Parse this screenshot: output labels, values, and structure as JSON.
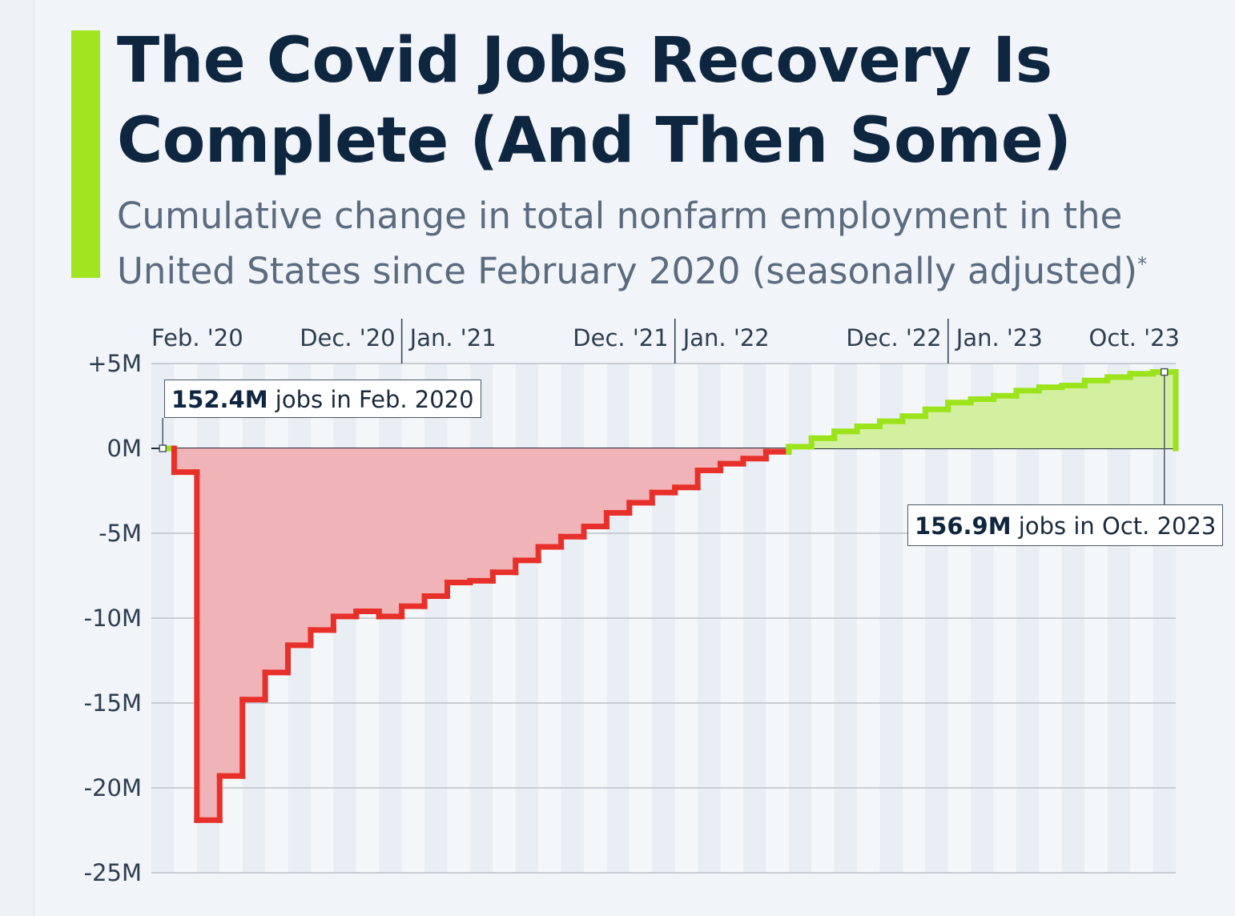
{
  "title": "The Covid Jobs Recovery Is Complete (And Then Some)",
  "subtitle": "Cumulative change in total nonfarm employment in the United States since February 2020 (seasonally adjusted)",
  "subtitle_footnote_mark": "*",
  "colors": {
    "accent": "#a0e520",
    "negative_line": "#e8302a",
    "negative_fill": "#f0b4b8",
    "positive_line": "#9be31a",
    "positive_fill": "#d3efa0",
    "title": "#0f2640"
  },
  "annotations": {
    "start": {
      "bold": "152.4M",
      "text": " jobs in Feb. 2020"
    },
    "end": {
      "bold": "156.9M",
      "text": " jobs in Oct. 2023"
    }
  },
  "chart_data": {
    "type": "area",
    "step": true,
    "ylabel": "",
    "xlabel": "",
    "ylim": [
      -25,
      5
    ],
    "unit": "M",
    "grid": true,
    "y_ticks": [
      "+5M",
      "0M",
      "-5M",
      "-10M",
      "-15M",
      "-20M",
      "-25M"
    ],
    "y_tick_values": [
      5,
      0,
      -5,
      -10,
      -15,
      -20,
      -25
    ],
    "x_tick_labels": [
      {
        "label": "Feb. '20",
        "month": "2020-02",
        "align": "start"
      },
      {
        "label": "Dec. '20",
        "month": "2020-12",
        "align": "end"
      },
      {
        "label": "Jan. '21",
        "month": "2021-01",
        "align": "start"
      },
      {
        "label": "Dec. '21",
        "month": "2021-12",
        "align": "end"
      },
      {
        "label": "Jan. '22",
        "month": "2022-01",
        "align": "start"
      },
      {
        "label": "Dec. '22",
        "month": "2022-12",
        "align": "end"
      },
      {
        "label": "Jan. '23",
        "month": "2023-01",
        "align": "start"
      },
      {
        "label": "Oct. '23",
        "month": "2023-10",
        "align": "end"
      }
    ],
    "x": [
      "2020-02",
      "2020-03",
      "2020-04",
      "2020-05",
      "2020-06",
      "2020-07",
      "2020-08",
      "2020-09",
      "2020-10",
      "2020-11",
      "2020-12",
      "2021-01",
      "2021-02",
      "2021-03",
      "2021-04",
      "2021-05",
      "2021-06",
      "2021-07",
      "2021-08",
      "2021-09",
      "2021-10",
      "2021-11",
      "2021-12",
      "2022-01",
      "2022-02",
      "2022-03",
      "2022-04",
      "2022-05",
      "2022-06",
      "2022-07",
      "2022-08",
      "2022-09",
      "2022-10",
      "2022-11",
      "2022-12",
      "2023-01",
      "2023-02",
      "2023-03",
      "2023-04",
      "2023-05",
      "2023-06",
      "2023-07",
      "2023-08",
      "2023-09",
      "2023-10"
    ],
    "values": [
      0,
      -1.4,
      -21.9,
      -19.3,
      -14.8,
      -13.2,
      -11.6,
      -10.7,
      -9.9,
      -9.6,
      -9.9,
      -9.3,
      -8.7,
      -7.9,
      -7.8,
      -7.3,
      -6.6,
      -5.8,
      -5.2,
      -4.6,
      -3.8,
      -3.2,
      -2.6,
      -2.3,
      -1.3,
      -0.9,
      -0.6,
      -0.2,
      0.1,
      0.6,
      1.0,
      1.3,
      1.6,
      1.9,
      2.3,
      2.7,
      2.9,
      3.1,
      3.4,
      3.6,
      3.7,
      4.0,
      4.2,
      4.4,
      4.5
    ]
  }
}
